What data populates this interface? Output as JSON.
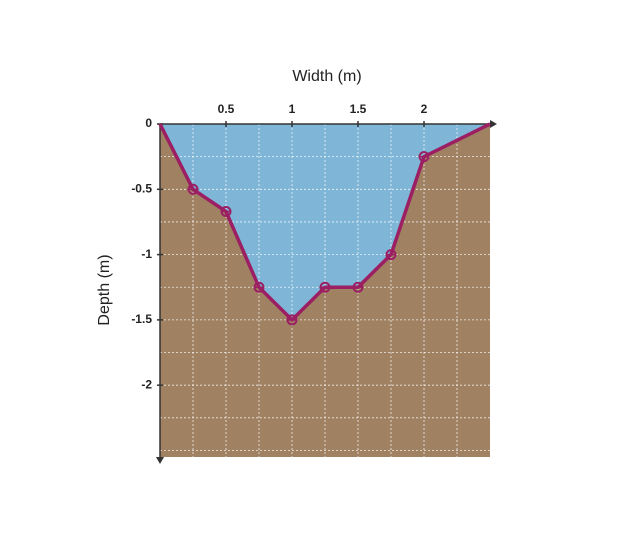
{
  "chart_data": {
    "type": "area",
    "x_label": "Width (m)",
    "y_label": "Depth (m)",
    "x": [
      0,
      0.25,
      0.5,
      0.75,
      1,
      1.25,
      1.5,
      1.75,
      2,
      2.5
    ],
    "series": [
      {
        "name": "Depth",
        "color": "#9b1f62",
        "values": [
          0,
          -0.5,
          -0.67,
          -1.25,
          -1.5,
          -1.25,
          -1.25,
          -1,
          -0.25,
          0
        ]
      }
    ],
    "water_color": "#7fb6d8",
    "ground_color": "#a08262",
    "xlim": [
      0,
      2.5
    ],
    "ylim": [
      -2.55,
      0
    ],
    "xticks": [
      0.5,
      1,
      1.5,
      2
    ],
    "yticks": [
      0,
      -0.5,
      -1,
      -1.5,
      -2
    ],
    "grid": true,
    "grid_step": 0.25
  }
}
